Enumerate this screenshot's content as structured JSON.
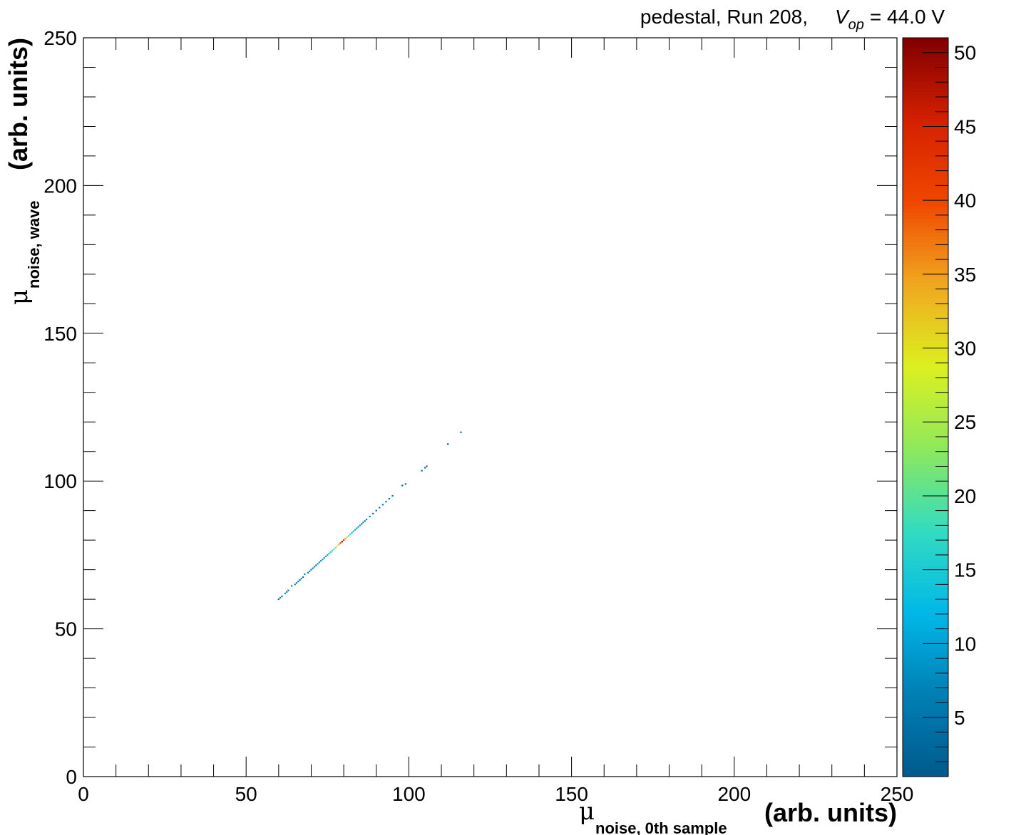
{
  "chart_data": {
    "type": "heatmap",
    "title": {
      "prefix": "pedestal, Run 208,",
      "symbol": "V",
      "subscript": "op",
      "suffix": "= 44.0 V"
    },
    "xlabel": {
      "symbol": "μ",
      "subscript": "noise, 0th sample",
      "unit": "(arb. units)"
    },
    "ylabel": {
      "symbol": "μ",
      "subscript": "noise, wave",
      "unit": "(arb. units)"
    },
    "xlim": [
      0,
      250
    ],
    "ylim": [
      0,
      250
    ],
    "x_tick_labels": [
      "0",
      "50",
      "100",
      "150",
      "200",
      "250"
    ],
    "y_tick_labels": [
      "0",
      "50",
      "100",
      "150",
      "200",
      "250"
    ],
    "colorbar": {
      "range": [
        1,
        51
      ],
      "tick_labels": [
        "5",
        "10",
        "15",
        "20",
        "25",
        "30",
        "35",
        "40",
        "45",
        "50"
      ],
      "colors": [
        "#005a8c",
        "#007fb4",
        "#00b8e8",
        "#33dcc0",
        "#8fe85c",
        "#dcf020",
        "#f0a820",
        "#f04800",
        "#d42000",
        "#800000"
      ]
    },
    "bin_width": 0.5,
    "points": [
      [
        60,
        60,
        4
      ],
      [
        60.5,
        60.5,
        5
      ],
      [
        61,
        61,
        4
      ],
      [
        62,
        62,
        5
      ],
      [
        62.5,
        62.5,
        6
      ],
      [
        63,
        63,
        5
      ],
      [
        64,
        64.5,
        5
      ],
      [
        65,
        65,
        6
      ],
      [
        65.5,
        65.5,
        5
      ],
      [
        66,
        66,
        6
      ],
      [
        66.5,
        66.5,
        4
      ],
      [
        67,
        67,
        6
      ],
      [
        67.5,
        67.5,
        5
      ],
      [
        68,
        68.5,
        7
      ],
      [
        69,
        69,
        8
      ],
      [
        69.5,
        69.5,
        7
      ],
      [
        70,
        70,
        8
      ],
      [
        70.5,
        70.5,
        6
      ],
      [
        71,
        71,
        7
      ],
      [
        71.5,
        71.5,
        6
      ],
      [
        72,
        72,
        8
      ],
      [
        72.5,
        72.5,
        9
      ],
      [
        73,
        73,
        7
      ],
      [
        73.5,
        73.5,
        9
      ],
      [
        74,
        74,
        10
      ],
      [
        74.5,
        74.5,
        11
      ],
      [
        75,
        75,
        10
      ],
      [
        75.5,
        75.5,
        12
      ],
      [
        76,
        76,
        14
      ],
      [
        76.5,
        76.5,
        16
      ],
      [
        77,
        77,
        18
      ],
      [
        77.5,
        77.5,
        22
      ],
      [
        78,
        78,
        28
      ],
      [
        78.5,
        78.5,
        34
      ],
      [
        79,
        79,
        42
      ],
      [
        79.5,
        79.5,
        51
      ],
      [
        80,
        80,
        44
      ],
      [
        80.5,
        80.5,
        36
      ],
      [
        81,
        81,
        26
      ],
      [
        81.5,
        81.5,
        20
      ],
      [
        82,
        82,
        16
      ],
      [
        82.5,
        82.5,
        13
      ],
      [
        83,
        83,
        11
      ],
      [
        83.5,
        83.5,
        10
      ],
      [
        84,
        84,
        9
      ],
      [
        84.5,
        84.5,
        8
      ],
      [
        85,
        85,
        8
      ],
      [
        85.5,
        85.5,
        7
      ],
      [
        86,
        86,
        7
      ],
      [
        86.5,
        86.5,
        6
      ],
      [
        87,
        87,
        6
      ],
      [
        88,
        88,
        5
      ],
      [
        89,
        89,
        4
      ],
      [
        90,
        90,
        4
      ],
      [
        91,
        91,
        4
      ],
      [
        92,
        92,
        4
      ],
      [
        93,
        93,
        4
      ],
      [
        94,
        94,
        4
      ],
      [
        95,
        95,
        4
      ],
      [
        98,
        98.5,
        3
      ],
      [
        99,
        99,
        3
      ],
      [
        104,
        103.5,
        3
      ],
      [
        105,
        104.5,
        3
      ],
      [
        105.5,
        105,
        3
      ],
      [
        112,
        112.5,
        2
      ],
      [
        116,
        116.5,
        2
      ]
    ]
  }
}
